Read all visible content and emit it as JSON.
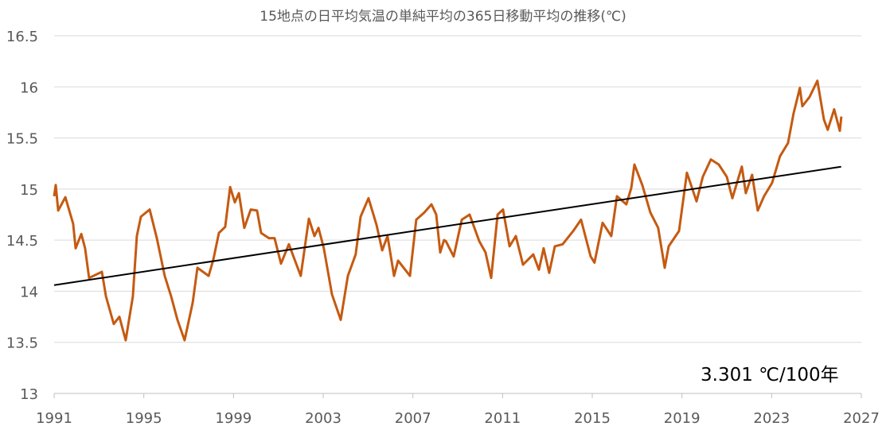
{
  "chart_data": {
    "type": "line",
    "title": "15地点の日平均気温の単純平均の365日移動平均の推移(℃)",
    "xlabel": "",
    "ylabel": "",
    "xlim": [
      1991,
      2027
    ],
    "ylim": [
      13,
      16.5
    ],
    "x_ticks": [
      1991,
      1995,
      1999,
      2003,
      2007,
      2011,
      2015,
      2019,
      2023,
      2027
    ],
    "y_ticks": [
      13,
      13.5,
      14,
      14.5,
      15,
      15.5,
      16,
      16.5
    ],
    "y_tick_labels": [
      "13",
      "13.5",
      "14",
      "14.5",
      "15",
      "15.5",
      "16",
      "16.5"
    ],
    "grid": "horizontal",
    "series": [
      {
        "color": "#c55a11",
        "x": [
          1991.0,
          1991.07,
          1991.18,
          1991.5,
          1991.85,
          1991.96,
          1992.21,
          1992.38,
          1992.56,
          1993.13,
          1993.31,
          1993.66,
          1993.91,
          1994.19,
          1994.51,
          1994.69,
          1994.87,
          1995.26,
          1995.58,
          1995.93,
          1996.22,
          1996.5,
          1996.82,
          1997.18,
          1997.39,
          1997.89,
          1998.1,
          1998.35,
          1998.63,
          1998.85,
          1999.06,
          1999.24,
          1999.48,
          1999.77,
          2000.05,
          2000.23,
          2000.58,
          2000.83,
          2001.12,
          2001.47,
          2002.0,
          2002.36,
          2002.61,
          2002.79,
          2003.03,
          2003.39,
          2003.78,
          2004.1,
          2004.45,
          2004.67,
          2005.02,
          2005.38,
          2005.63,
          2005.87,
          2006.16,
          2006.34,
          2006.87,
          2007.15,
          2007.51,
          2007.83,
          2008.04,
          2008.22,
          2008.39,
          2008.47,
          2008.82,
          2009.18,
          2009.53,
          2009.96,
          2010.24,
          2010.49,
          2010.78,
          2011.02,
          2011.31,
          2011.59,
          2011.91,
          2012.37,
          2012.62,
          2012.83,
          2013.08,
          2013.33,
          2013.68,
          2014.15,
          2014.5,
          2014.93,
          2015.1,
          2015.46,
          2015.85,
          2016.1,
          2016.52,
          2016.74,
          2016.88,
          2017.23,
          2017.59,
          2017.94,
          2018.23,
          2018.41,
          2018.87,
          2019.22,
          2019.65,
          2019.93,
          2020.29,
          2020.64,
          2021.0,
          2021.25,
          2021.67,
          2021.85,
          2022.13,
          2022.38,
          2022.66,
          2023.02,
          2023.37,
          2023.73,
          2023.98,
          2024.26,
          2024.37,
          2024.69,
          2025.04,
          2025.33,
          2025.5,
          2025.79,
          2026.04,
          2026.11
        ],
        "y": [
          14.93,
          15.04,
          14.79,
          14.92,
          14.66,
          14.42,
          14.56,
          14.42,
          14.13,
          14.19,
          13.95,
          13.68,
          13.75,
          13.52,
          13.95,
          14.54,
          14.73,
          14.8,
          14.52,
          14.15,
          13.95,
          13.72,
          13.52,
          13.89,
          14.23,
          14.15,
          14.31,
          14.57,
          14.63,
          15.02,
          14.87,
          14.96,
          14.62,
          14.8,
          14.79,
          14.57,
          14.52,
          14.52,
          14.27,
          14.46,
          14.15,
          14.71,
          14.54,
          14.62,
          14.42,
          13.97,
          13.72,
          14.15,
          14.36,
          14.73,
          14.91,
          14.65,
          14.4,
          14.54,
          14.15,
          14.3,
          14.15,
          14.7,
          14.77,
          14.85,
          14.75,
          14.38,
          14.5,
          14.49,
          14.34,
          14.7,
          14.75,
          14.49,
          14.38,
          14.13,
          14.75,
          14.8,
          14.44,
          14.54,
          14.26,
          14.36,
          14.21,
          14.42,
          14.18,
          14.44,
          14.46,
          14.59,
          14.7,
          14.34,
          14.28,
          14.67,
          14.54,
          14.93,
          14.85,
          15.01,
          15.24,
          15.04,
          14.77,
          14.62,
          14.23,
          14.44,
          14.59,
          15.16,
          14.88,
          15.12,
          15.29,
          15.24,
          15.12,
          14.91,
          15.22,
          14.96,
          15.14,
          14.79,
          14.93,
          15.06,
          15.32,
          15.45,
          15.74,
          15.99,
          15.81,
          15.9,
          16.06,
          15.68,
          15.58,
          15.78,
          15.57,
          15.71
        ]
      }
    ],
    "trendline": {
      "color": "#000000",
      "x": [
        1991,
        2026.1
      ],
      "slope_per_100yr": 3.301,
      "y_at_start": 14.06
    },
    "annotation": "3.301 ℃/100年"
  }
}
